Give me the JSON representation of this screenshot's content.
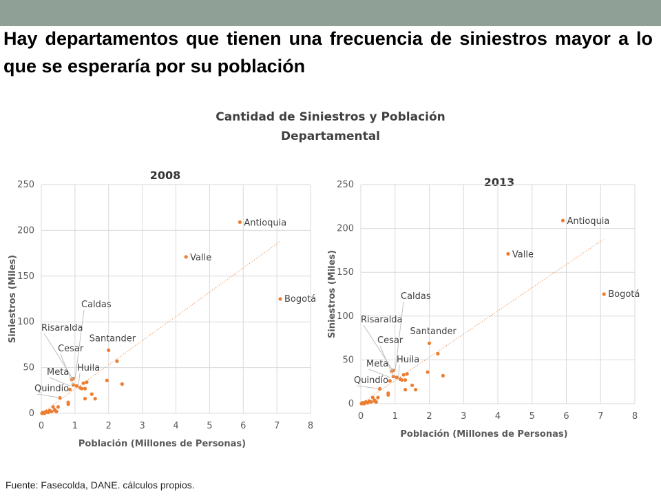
{
  "slide": {
    "headline": "Hay departamentos que tienen una frecuencia de siniestros mayor a lo que se esperaría por su población",
    "chart_title_line1": "Cantidad de Siniestros y Población",
    "chart_title_line2": "Departamental",
    "footer": "Fuente: Fasecolda, DANE. cálculos propios.",
    "accent_bar_color": "#8fa197",
    "point_color": "#ed7d31"
  },
  "chart_data": [
    {
      "type": "scatter",
      "title": "2008",
      "xlabel": "Población (Millones de Personas)",
      "ylabel": "Siniestros (Miles)",
      "xlim": [
        0,
        8
      ],
      "ylim": [
        0,
        250
      ],
      "xticks": [
        0,
        1,
        2,
        3,
        4,
        5,
        6,
        7,
        8
      ],
      "yticks": [
        0,
        50,
        100,
        150,
        200,
        250
      ],
      "grid": true,
      "trendline": {
        "style": "dotted",
        "from": [
          0,
          0
        ],
        "to": [
          7.1,
          188
        ]
      },
      "labels": [
        {
          "text": "Antioquia",
          "x": 5.9,
          "y": 209
        },
        {
          "text": "Valle",
          "x": 4.3,
          "y": 171
        },
        {
          "text": "Bogotá",
          "x": 7.1,
          "y": 125
        },
        {
          "text": "Santander",
          "x": 2.0,
          "y": 69
        },
        {
          "text": "Caldas",
          "x": 1.0,
          "y": 37
        },
        {
          "text": "Risaralda",
          "x": 0.95,
          "y": 37
        },
        {
          "text": "Cesar",
          "x": 0.95,
          "y": 31
        },
        {
          "text": "Huila",
          "x": 1.1,
          "y": 30
        },
        {
          "text": "Meta",
          "x": 0.85,
          "y": 30
        },
        {
          "text": "Quindío",
          "x": 0.55,
          "y": 17
        }
      ],
      "points": [
        [
          5.9,
          209
        ],
        [
          4.3,
          171
        ],
        [
          7.1,
          125
        ],
        [
          2.0,
          69
        ],
        [
          2.25,
          57
        ],
        [
          1.95,
          36
        ],
        [
          2.4,
          32
        ],
        [
          1.35,
          34
        ],
        [
          1.3,
          27
        ],
        [
          1.25,
          33
        ],
        [
          1.2,
          27
        ],
        [
          1.5,
          21
        ],
        [
          1.6,
          16
        ],
        [
          1.3,
          16
        ],
        [
          0.95,
          38
        ],
        [
          0.9,
          37
        ],
        [
          1.05,
          30
        ],
        [
          0.95,
          31
        ],
        [
          0.85,
          26
        ],
        [
          1.15,
          28
        ],
        [
          0.8,
          12
        ],
        [
          0.8,
          10
        ],
        [
          0.55,
          17
        ],
        [
          0.5,
          7
        ],
        [
          0.4,
          4
        ],
        [
          0.35,
          7
        ],
        [
          0.3,
          2
        ],
        [
          0.45,
          2
        ],
        [
          0.4,
          3
        ],
        [
          0.05,
          1
        ],
        [
          0.1,
          1
        ],
        [
          0.15,
          2
        ],
        [
          0.2,
          1
        ],
        [
          0.1,
          0
        ],
        [
          0.25,
          3
        ],
        [
          0.02,
          0
        ]
      ]
    },
    {
      "type": "scatter",
      "title": "2013",
      "xlabel": "Población (Millones de Personas)",
      "ylabel": "Siniestros (Miles)",
      "xlim": [
        0,
        8
      ],
      "ylim": [
        0,
        250
      ],
      "xticks": [
        0,
        1,
        2,
        3,
        4,
        5,
        6,
        7,
        8
      ],
      "yticks": [
        0,
        50,
        100,
        150,
        200,
        250
      ],
      "grid": true,
      "trendline": {
        "style": "dotted",
        "from": [
          0,
          0
        ],
        "to": [
          7.1,
          188
        ]
      },
      "labels": [
        {
          "text": "Antioquia",
          "x": 5.9,
          "y": 209
        },
        {
          "text": "Valle",
          "x": 4.3,
          "y": 171
        },
        {
          "text": "Bogotá",
          "x": 7.1,
          "y": 125
        },
        {
          "text": "Santander",
          "x": 2.0,
          "y": 69
        },
        {
          "text": "Caldas",
          "x": 1.0,
          "y": 37
        },
        {
          "text": "Risaralda",
          "x": 0.95,
          "y": 37
        },
        {
          "text": "Cesar",
          "x": 0.95,
          "y": 31
        },
        {
          "text": "Huila",
          "x": 1.1,
          "y": 30
        },
        {
          "text": "Meta",
          "x": 0.85,
          "y": 30
        },
        {
          "text": "Quindío",
          "x": 0.55,
          "y": 17
        }
      ],
      "points": [
        [
          5.9,
          209
        ],
        [
          4.3,
          171
        ],
        [
          7.1,
          125
        ],
        [
          2.0,
          69
        ],
        [
          2.25,
          57
        ],
        [
          1.95,
          36
        ],
        [
          2.4,
          32
        ],
        [
          1.35,
          34
        ],
        [
          1.3,
          27
        ],
        [
          1.25,
          33
        ],
        [
          1.2,
          27
        ],
        [
          1.5,
          21
        ],
        [
          1.6,
          16
        ],
        [
          1.3,
          16
        ],
        [
          0.95,
          38
        ],
        [
          0.9,
          37
        ],
        [
          1.05,
          30
        ],
        [
          0.95,
          31
        ],
        [
          0.85,
          26
        ],
        [
          1.15,
          28
        ],
        [
          0.8,
          12
        ],
        [
          0.8,
          10
        ],
        [
          0.55,
          17
        ],
        [
          0.5,
          7
        ],
        [
          0.4,
          4
        ],
        [
          0.35,
          7
        ],
        [
          0.3,
          2
        ],
        [
          0.45,
          2
        ],
        [
          0.4,
          3
        ],
        [
          0.05,
          1
        ],
        [
          0.1,
          1
        ],
        [
          0.15,
          2
        ],
        [
          0.2,
          1
        ],
        [
          0.1,
          0
        ],
        [
          0.25,
          3
        ],
        [
          0.02,
          0
        ]
      ]
    }
  ]
}
